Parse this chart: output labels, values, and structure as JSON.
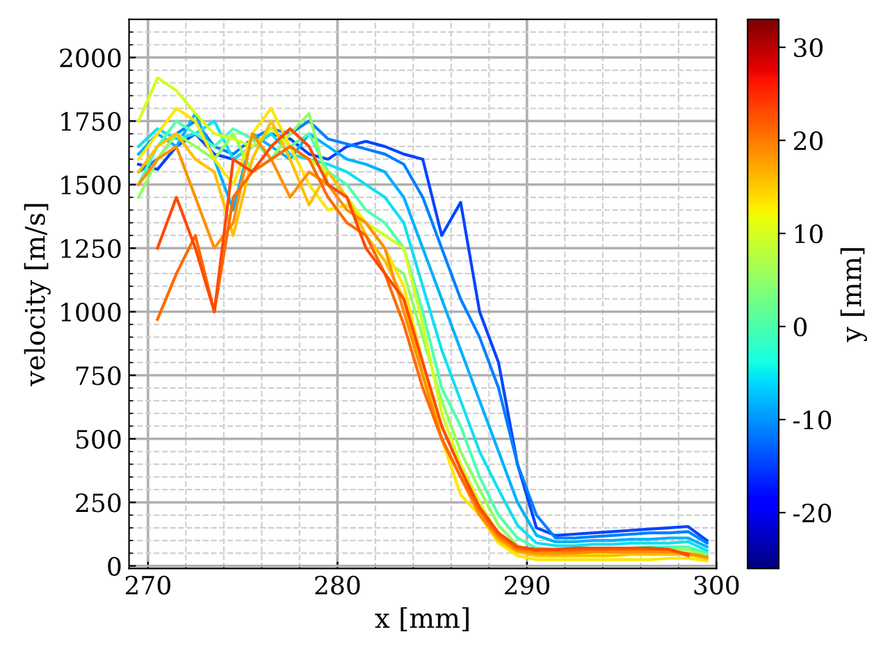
{
  "chart_data": {
    "type": "line",
    "xlabel": "x [mm]",
    "ylabel": "velocity [m/s]",
    "clabel": "y [mm]",
    "x": [
      269.5,
      270.5,
      271.5,
      272.5,
      273.5,
      274.5,
      275.5,
      276.5,
      277.5,
      278.5,
      279.5,
      280.5,
      281.5,
      282.5,
      283.5,
      284.5,
      285.5,
      286.5,
      287.5,
      288.5,
      289.5,
      290.5,
      291.5,
      292.5,
      293.5,
      294.5,
      295.5,
      296.5,
      297.5,
      298.5,
      299.5
    ],
    "xlim": [
      269,
      300
    ],
    "xticks": [
      270,
      280,
      290,
      300
    ],
    "ylim": [
      -10,
      2150
    ],
    "yticks": [
      0,
      250,
      500,
      750,
      1000,
      1250,
      1500,
      1750,
      2000
    ],
    "clim": [
      -26,
      33
    ],
    "cticks": [
      -20,
      -10,
      0,
      10,
      20,
      30
    ],
    "grid": true,
    "line_style": "solid",
    "marker": "none",
    "series": [
      {
        "color": "#0044ff",
        "values": [
          1580,
          1560,
          1650,
          1700,
          1620,
          1600,
          1650,
          1700,
          1680,
          1620,
          1600,
          1650,
          1670,
          1650,
          1620,
          1600,
          1300,
          1430,
          1000,
          800,
          400,
          150,
          120,
          125,
          130,
          135,
          140,
          145,
          150,
          155,
          100
        ]
      },
      {
        "color": "#0080ff",
        "values": [
          1550,
          1600,
          1700,
          1750,
          1650,
          1620,
          1680,
          1720,
          1700,
          1750,
          1680,
          1660,
          1640,
          1620,
          1580,
          1450,
          1250,
          1050,
          900,
          700,
          400,
          200,
          110,
          110,
          115,
          120,
          125,
          130,
          130,
          135,
          90
        ]
      },
      {
        "color": "#00b0ff",
        "values": [
          1620,
          1700,
          1650,
          1780,
          1600,
          1400,
          1700,
          1650,
          1600,
          1700,
          1650,
          1600,
          1580,
          1550,
          1450,
          1250,
          1050,
          850,
          650,
          450,
          250,
          120,
          95,
          95,
          100,
          100,
          105,
          105,
          110,
          110,
          75
        ]
      },
      {
        "color": "#10e0f0",
        "values": [
          1650,
          1720,
          1680,
          1700,
          1750,
          1600,
          1650,
          1700,
          1620,
          1600,
          1580,
          1550,
          1500,
          1450,
          1350,
          1100,
          850,
          650,
          450,
          300,
          160,
          90,
          80,
          80,
          85,
          85,
          90,
          90,
          90,
          95,
          60
        ]
      },
      {
        "color": "#50ffb0",
        "values": [
          1500,
          1650,
          1750,
          1700,
          1650,
          1720,
          1680,
          1600,
          1650,
          1700,
          1550,
          1500,
          1400,
          1350,
          1250,
          1000,
          700,
          550,
          350,
          200,
          110,
          70,
          65,
          65,
          70,
          70,
          70,
          75,
          75,
          75,
          50
        ]
      },
      {
        "color": "#90ff60",
        "values": [
          1450,
          1600,
          1700,
          1650,
          1600,
          1700,
          1550,
          1600,
          1700,
          1780,
          1500,
          1450,
          1300,
          1200,
          1150,
          900,
          650,
          450,
          300,
          160,
          80,
          55,
          55,
          55,
          60,
          60,
          60,
          60,
          65,
          65,
          40
        ]
      },
      {
        "color": "#d0ff20",
        "values": [
          1750,
          1920,
          1870,
          1780,
          1700,
          1680,
          1650,
          1720,
          1650,
          1600,
          1550,
          1450,
          1350,
          1300,
          1250,
          950,
          600,
          400,
          250,
          120,
          60,
          40,
          40,
          40,
          45,
          45,
          45,
          45,
          45,
          45,
          30
        ]
      },
      {
        "color": "#ffe600",
        "values": [
          1600,
          1700,
          1800,
          1750,
          1600,
          1500,
          1700,
          1800,
          1650,
          1500,
          1400,
          1420,
          1350,
          1250,
          1100,
          800,
          500,
          280,
          200,
          90,
          40,
          25,
          25,
          25,
          25,
          25,
          25,
          25,
          30,
          30,
          20
        ]
      },
      {
        "color": "#ffc000",
        "values": [
          1550,
          1650,
          1700,
          1600,
          1550,
          1300,
          1600,
          1750,
          1600,
          1420,
          1550,
          1450,
          1300,
          1200,
          1050,
          750,
          500,
          350,
          200,
          100,
          55,
          40,
          40,
          40,
          40,
          40,
          45,
          45,
          45,
          45,
          30
        ]
      },
      {
        "color": "#ff9000",
        "values": [
          1500,
          1600,
          1650,
          1450,
          1250,
          1350,
          1700,
          1600,
          1450,
          1550,
          1500,
          1400,
          1350,
          1250,
          1000,
          750,
          500,
          350,
          200,
          110,
          60,
          50,
          50,
          50,
          55,
          55,
          55,
          55,
          55,
          50,
          35
        ]
      },
      {
        "color": "#ff6a00",
        "values": [
          null,
          970,
          1150,
          1300,
          1000,
          1450,
          1550,
          1600,
          1650,
          1600,
          1450,
          1350,
          1300,
          1150,
          950,
          700,
          500,
          350,
          220,
          120,
          70,
          60,
          60,
          60,
          65,
          65,
          65,
          65,
          65,
          40,
          null
        ]
      },
      {
        "color": "#ff4a00",
        "values": [
          null,
          1250,
          1450,
          1250,
          1000,
          1600,
          1550,
          1650,
          1720,
          1650,
          1500,
          1450,
          1250,
          1150,
          1050,
          800,
          550,
          380,
          230,
          130,
          75,
          65,
          65,
          70,
          70,
          70,
          70,
          70,
          65,
          45,
          null
        ]
      }
    ]
  }
}
